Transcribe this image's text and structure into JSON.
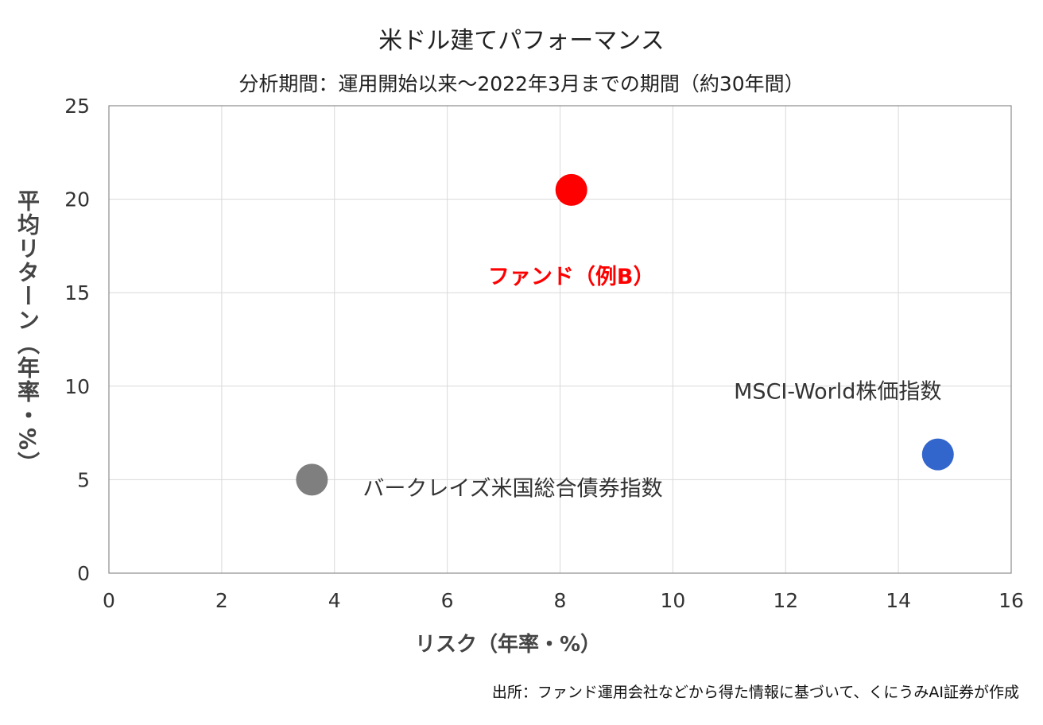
{
  "chart_data": {
    "type": "scatter",
    "title": "米ドル建てパフォーマンス",
    "subtitle": "分析期間：運用開始以来～2022年3月までの期間（約30年間）",
    "xlabel": "リスク（年率・%）",
    "ylabel": "平均リターン（年率・%）",
    "xlim": [
      0,
      16
    ],
    "ylim": [
      0,
      25
    ],
    "x_ticks": [
      0,
      2,
      4,
      6,
      8,
      10,
      12,
      14,
      16
    ],
    "y_ticks": [
      0,
      5,
      10,
      15,
      20,
      25
    ],
    "grid": true,
    "points": [
      {
        "name": "ファンド（例B）",
        "x": 8.2,
        "y": 20.5,
        "color": "#ff0000",
        "label_color": "#ff0000",
        "label_bold": true
      },
      {
        "name": "MSCI-World株価指数",
        "x": 14.7,
        "y": 6.35,
        "color": "#3366cc",
        "label_color": "#333333",
        "label_bold": false
      },
      {
        "name": "バークレイズ米国総合債券指数",
        "x": 3.6,
        "y": 5.0,
        "color": "#7f7f7f",
        "label_color": "#333333",
        "label_bold": false
      }
    ]
  },
  "source_note": "出所：ファンド運用会社などから得た情報に基づいて、くにうみAI証券が作成"
}
